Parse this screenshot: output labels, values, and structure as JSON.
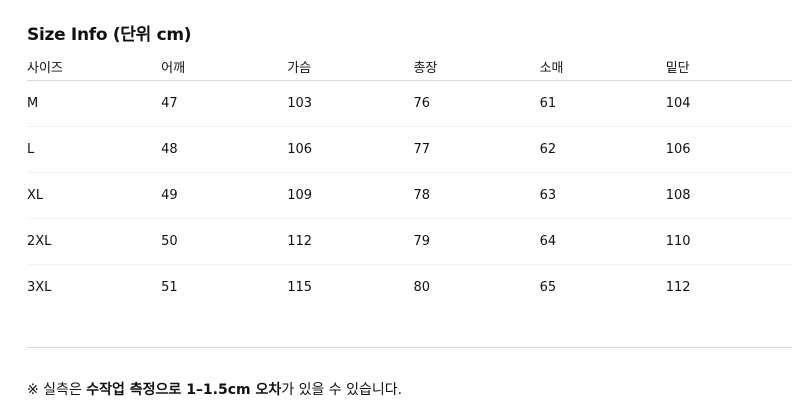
{
  "title": "Size Info (단위 cm)",
  "table": {
    "headers": [
      "사이즈",
      "어깨",
      "가슴",
      "총장",
      "소매",
      "밑단"
    ],
    "rows": [
      [
        "M",
        "47",
        "103",
        "76",
        "61",
        "104"
      ],
      [
        "L",
        "48",
        "106",
        "77",
        "62",
        "106"
      ],
      [
        "XL",
        "49",
        "109",
        "78",
        "63",
        "108"
      ],
      [
        "2XL",
        "50",
        "112",
        "79",
        "64",
        "110"
      ],
      [
        "3XL",
        "51",
        "115",
        "80",
        "65",
        "112"
      ]
    ]
  },
  "note": {
    "prefix": "※ 실측은 ",
    "bold": "수작업 측정으로 1–1.5cm 오차",
    "suffix": "가 있을 수 있습니다."
  }
}
